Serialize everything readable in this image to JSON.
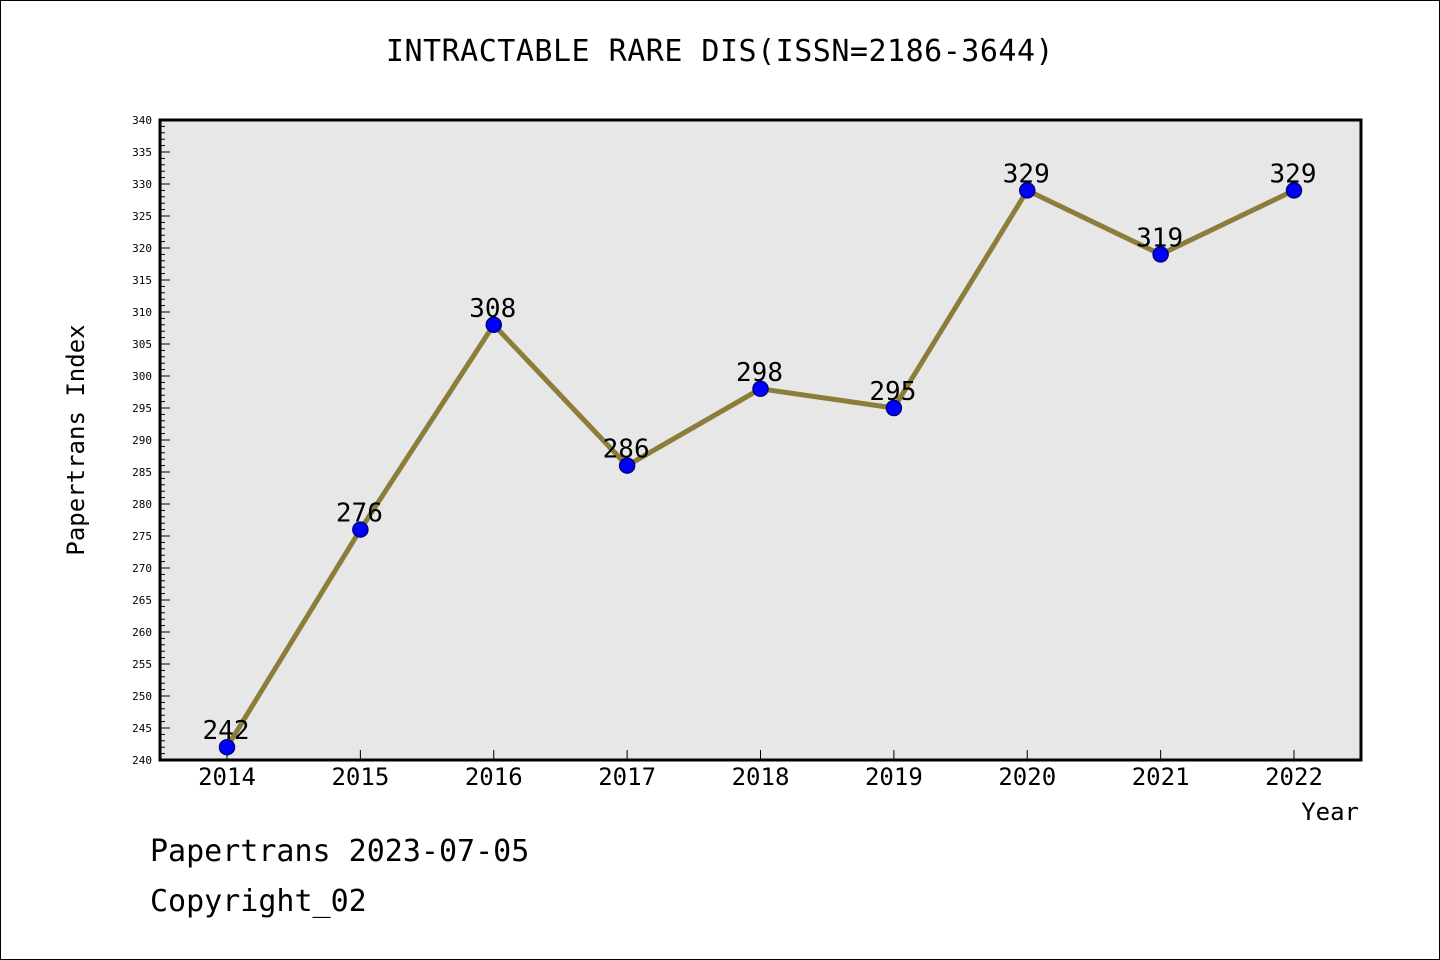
{
  "title": "INTRACTABLE RARE DIS(ISSN=2186-3644)",
  "footer": {
    "date_line": "Papertrans 2023-07-05",
    "copyright_line": "Copyright_02"
  },
  "chart_data": {
    "type": "line",
    "title": "INTRACTABLE RARE DIS(ISSN=2186-3644)",
    "xlabel": "Year",
    "ylabel": "Papertrans Index",
    "categories": [
      "2014",
      "2015",
      "2016",
      "2017",
      "2018",
      "2019",
      "2020",
      "2021",
      "2022"
    ],
    "values": [
      242,
      276,
      308,
      286,
      298,
      295,
      329,
      319,
      329
    ],
    "data_labels": [
      "242",
      "276",
      "308",
      "286",
      "298",
      "295",
      "329",
      "319",
      "329"
    ],
    "ylim": [
      240,
      340
    ],
    "y_major_step": 5,
    "y_minor_step": 1,
    "grid": false,
    "colors": {
      "plot_background": "#e7e7e7",
      "line": "#8b7d3a",
      "marker_fill": "#0000ff",
      "marker_edge": "#000080",
      "axis": "#000000"
    }
  }
}
